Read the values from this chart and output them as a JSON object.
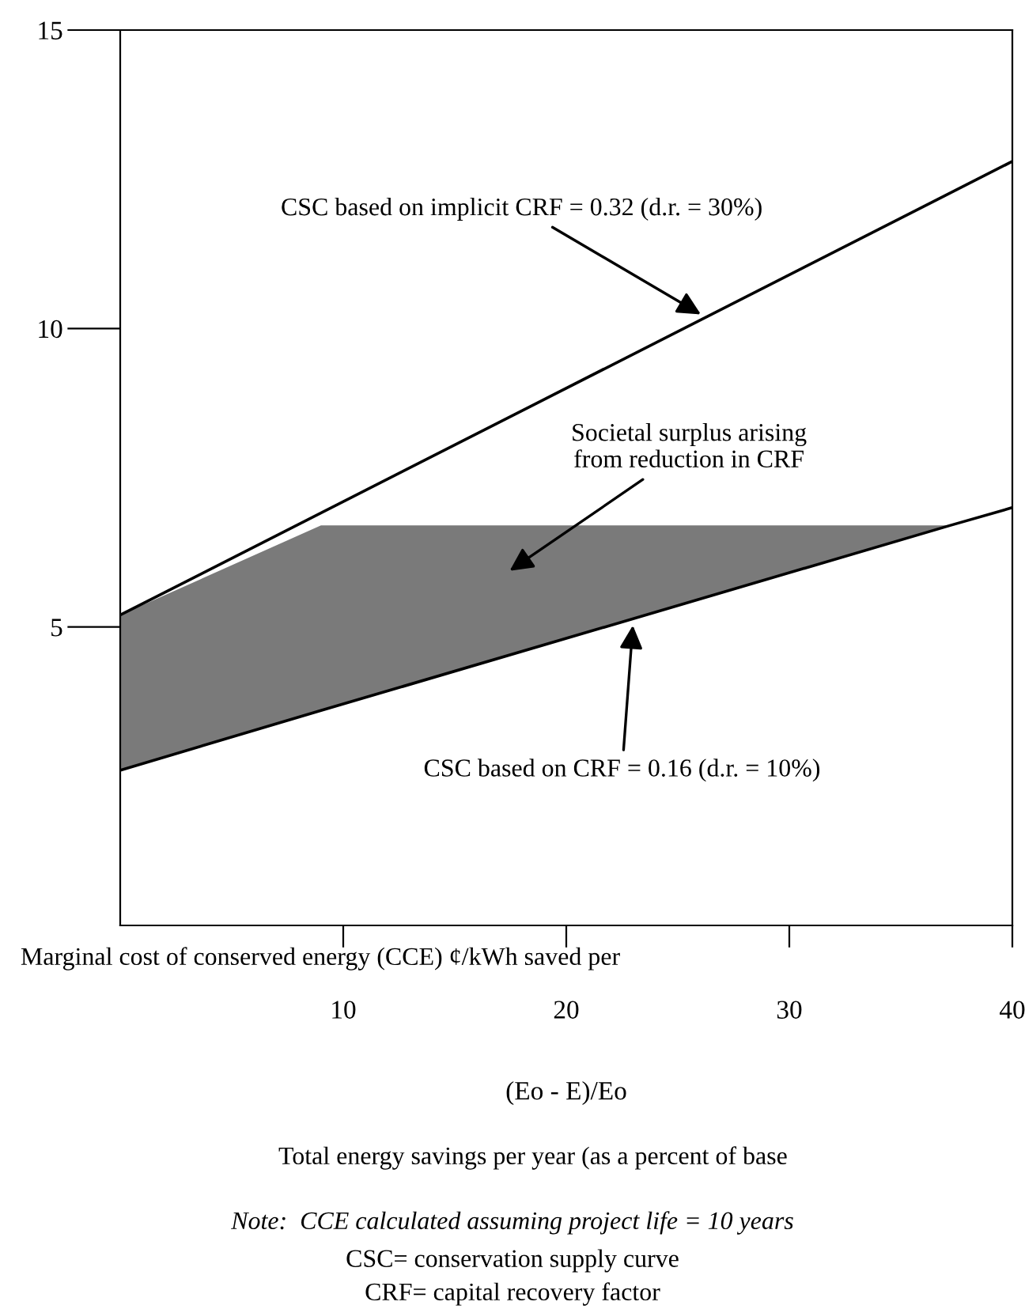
{
  "chart_data": {
    "type": "line",
    "ylabel": "Marginal cost of conserved energy (CCE) ¢/kWh saved per",
    "xlabel": "(Eo - E)/Eo",
    "subtitle": "Total energy savings per year (as a percent of base",
    "series": [
      {
        "color": "#000000",
        "x": [
          0,
          40
        ],
        "values": [
          5.2,
          12.8
        ]
      },
      {
        "color": "#000000",
        "x": [
          0,
          9,
          37.2,
          40
        ],
        "values": [
          2.6,
          3.6,
          6.7,
          7.0
        ],
        "lower": [
          2.6,
          3.6,
          6.7,
          7.0
        ],
        "upper": [
          5.2,
          6.7,
          6.7,
          7.0
        ]
      }
    ],
    "annotations": [
      {
        "text": "CSC based on implicit CRF = 0.32 (d.r. = 30%)",
        "x": 26.2,
        "y": 10.2
      },
      "Societal surplus arising\nfrom reduction in CRF",
      {
        "text": "CSC based on CRF = 0.16 (d.r. = 10%)",
        "x": 23.0,
        "y": 5.1
      },
      "Note:  CCE calculated assuming project life = 10 years",
      "CSC= conservation supply curve",
      "CRF= capital recovery factor"
    ],
    "xlim": [
      0,
      40
    ],
    "ylim": [
      0,
      15
    ],
    "xticks": [
      10,
      20,
      30,
      40
    ],
    "yticks": [
      5,
      10,
      15
    ],
    "grid": false,
    "legend": false
  }
}
